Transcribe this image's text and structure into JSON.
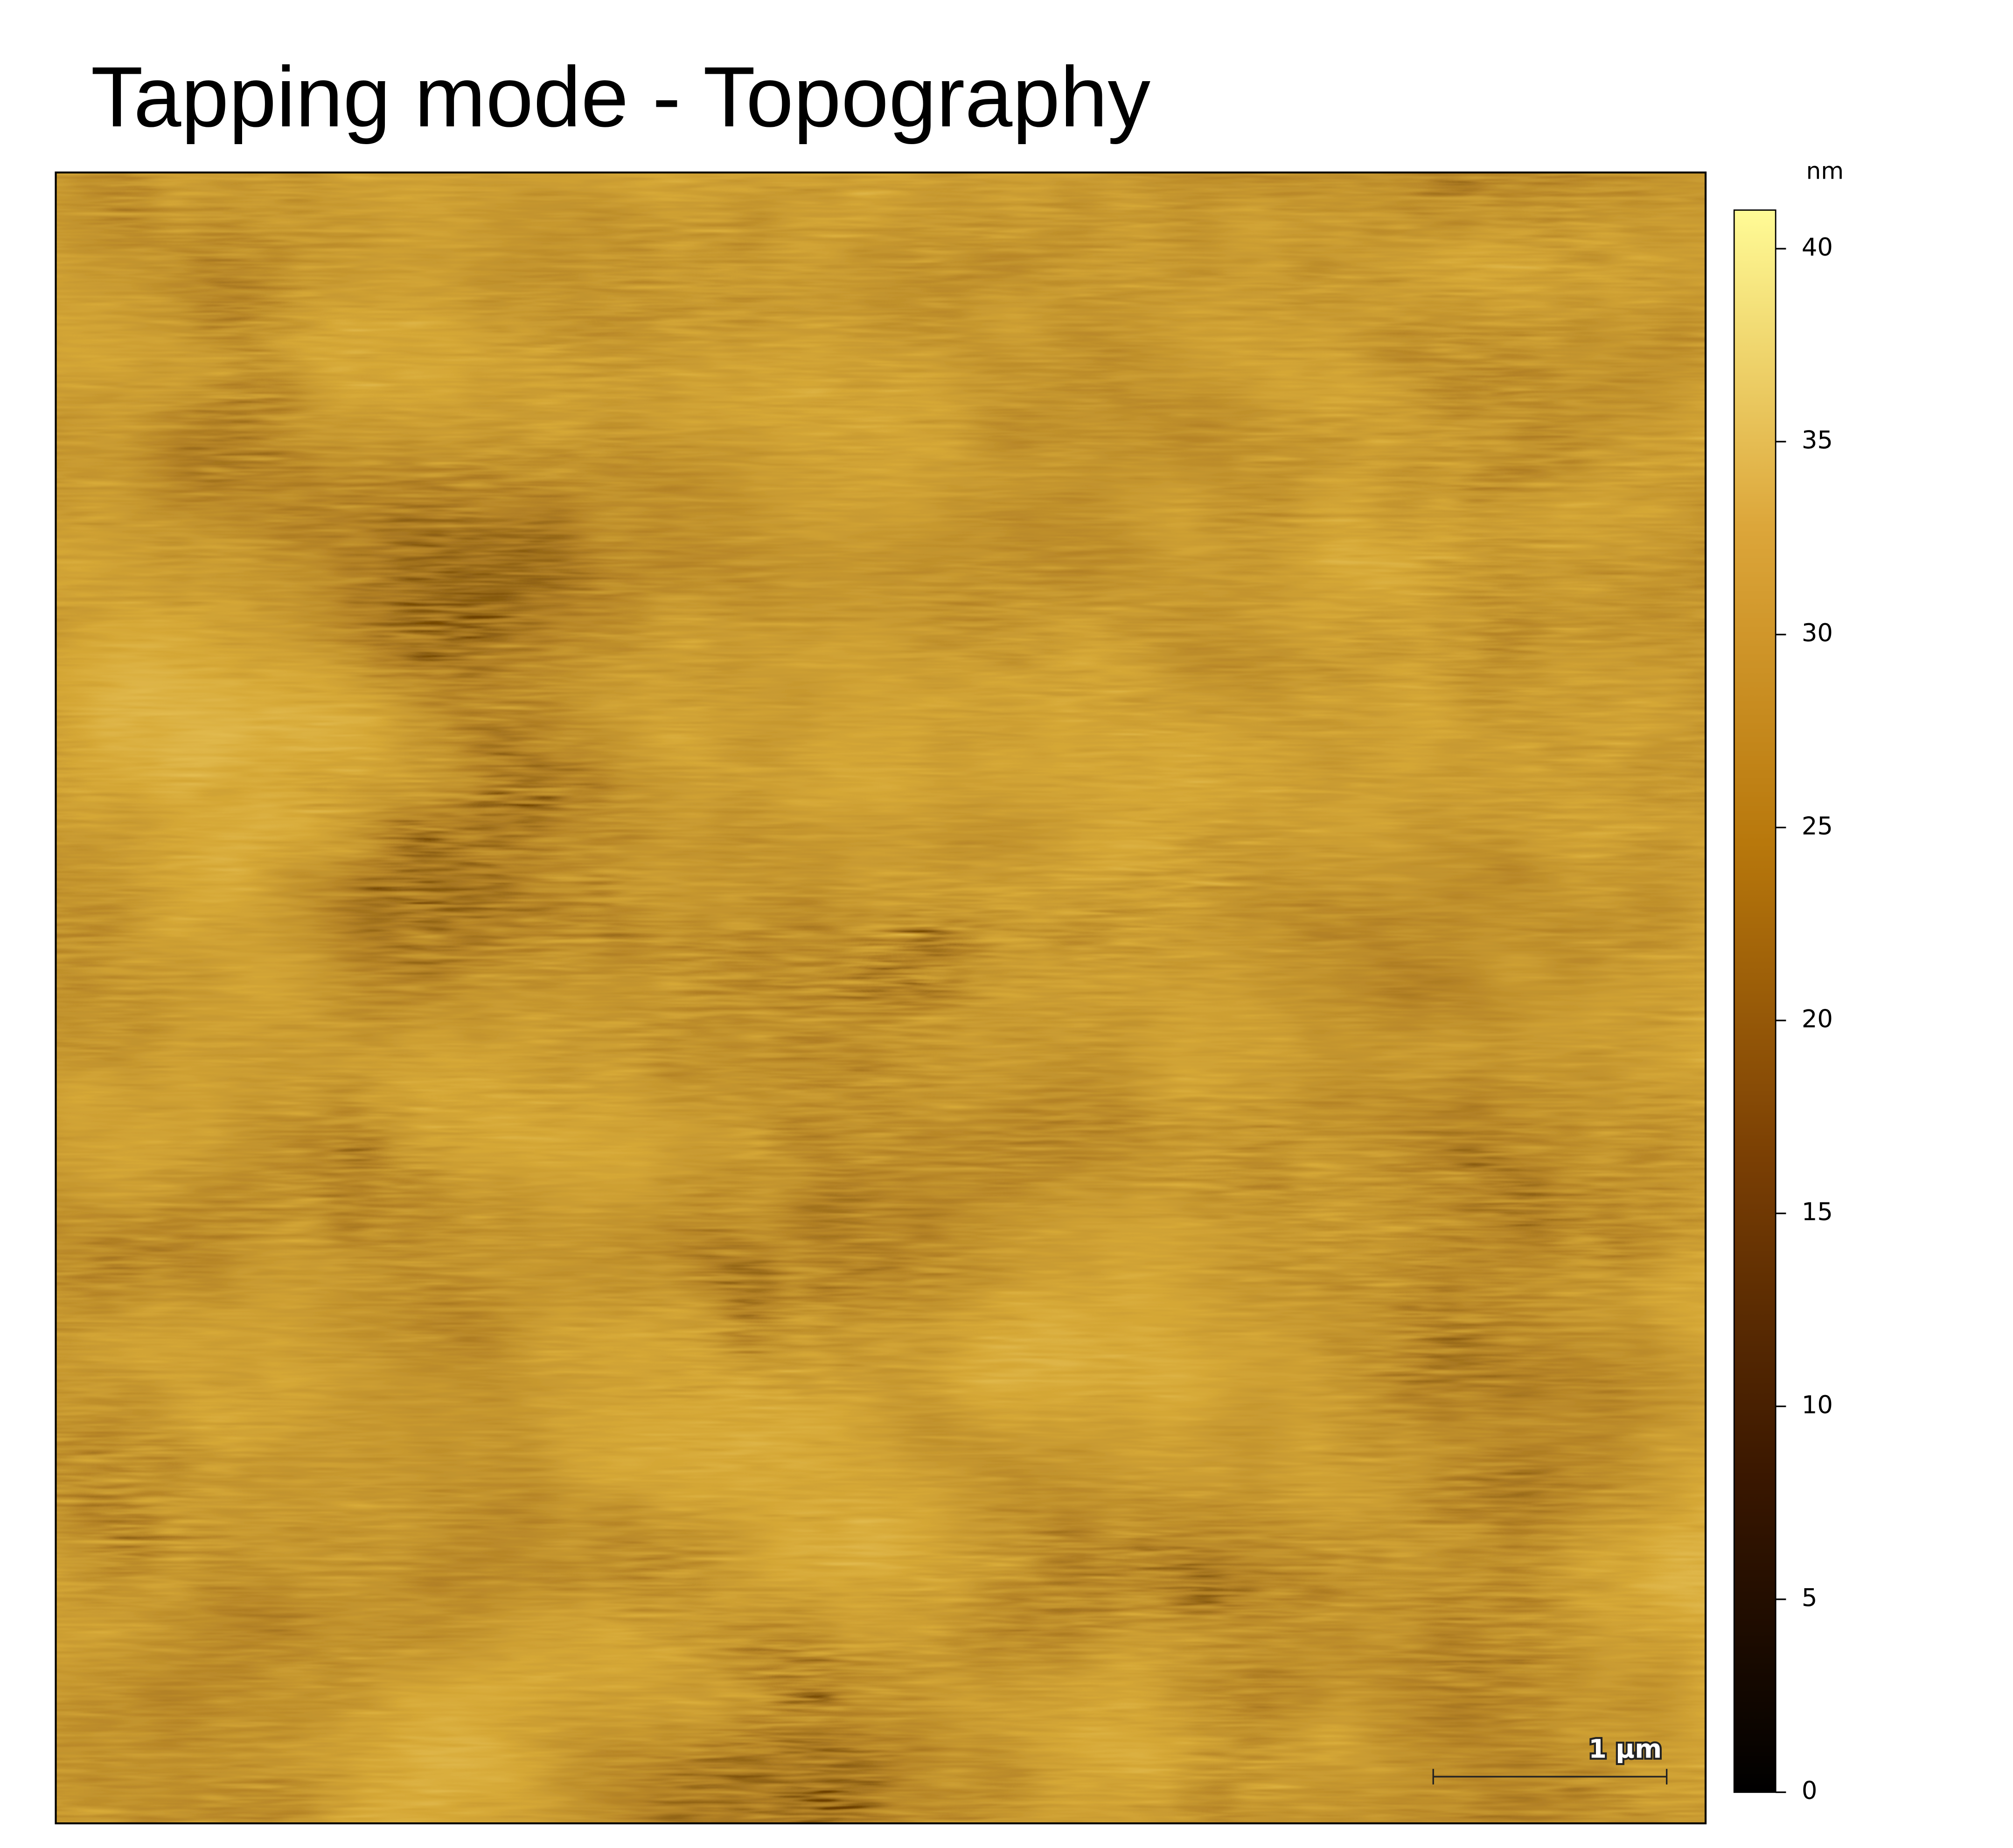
{
  "chart_data": {
    "type": "image",
    "title": "Tapping mode - Topography",
    "colorbar": {
      "label": "nm",
      "lim": [
        0,
        41
      ],
      "ticks": [
        0,
        5,
        10,
        15,
        20,
        25,
        30,
        35,
        40
      ],
      "colormap": [
        "#000000",
        "#3a1700",
        "#7a3f04",
        "#b8780c",
        "#dca63a",
        "#fffb96"
      ]
    },
    "scale_bar_label": "1 µm"
  }
}
